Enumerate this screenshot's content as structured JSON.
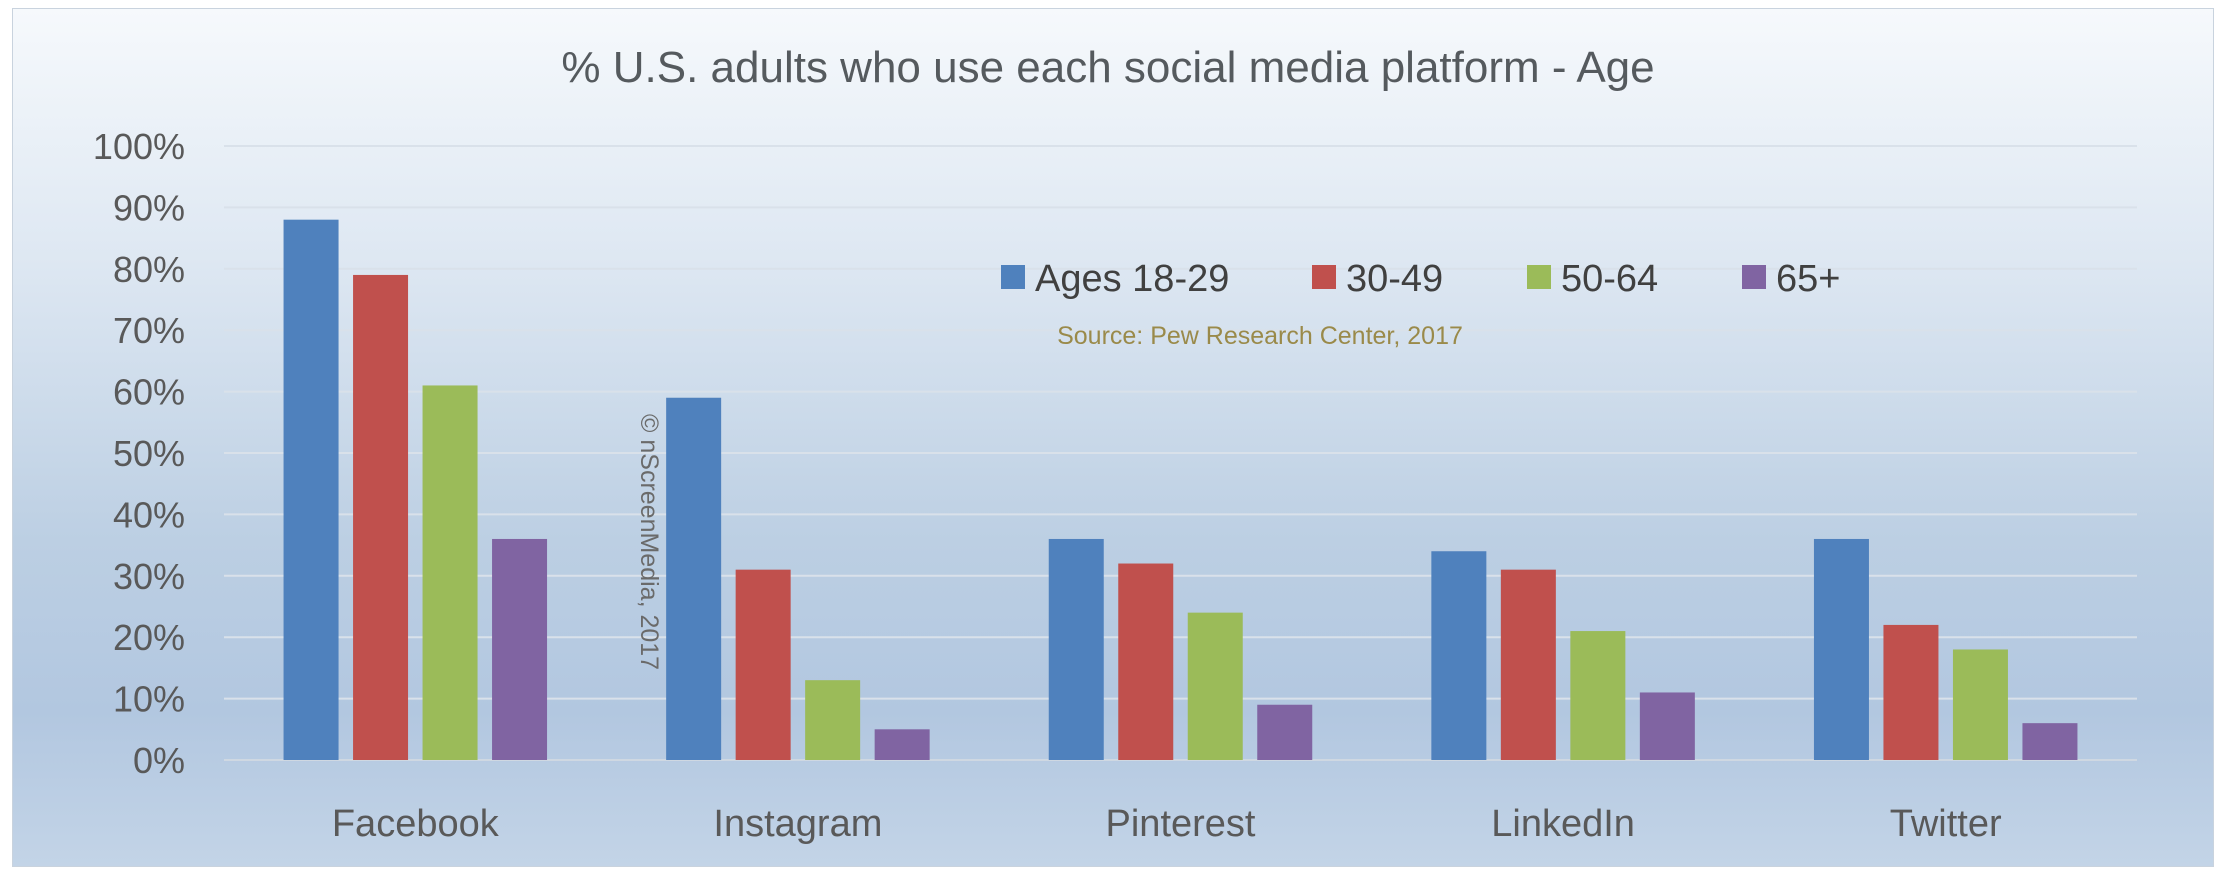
{
  "chart_data": {
    "type": "bar",
    "title": "% U.S. adults who use each social media platform - Age",
    "categories": [
      "Facebook",
      "Instagram",
      "Pinterest",
      "LinkedIn",
      "Twitter"
    ],
    "series": [
      {
        "name": "Ages 18-29",
        "color": "#4f81bd",
        "values": [
          88,
          59,
          36,
          34,
          36
        ]
      },
      {
        "name": "30-49",
        "color": "#c0504d",
        "values": [
          79,
          31,
          32,
          31,
          22
        ]
      },
      {
        "name": "50-64",
        "color": "#9bbb59",
        "values": [
          61,
          13,
          24,
          21,
          18
        ]
      },
      {
        "name": "65+",
        "color": "#8064a2",
        "values": [
          36,
          5,
          9,
          11,
          6
        ]
      }
    ],
    "ylim": [
      0,
      100
    ],
    "y_ticks": [
      "0%",
      "10%",
      "20%",
      "30%",
      "40%",
      "50%",
      "60%",
      "70%",
      "80%",
      "90%",
      "100%"
    ],
    "grid": true,
    "legend_position": "top-center (inside plot)",
    "source_note": "Source: Pew Research Center, 2017",
    "watermark": "© nScreenMedia, 2017"
  }
}
